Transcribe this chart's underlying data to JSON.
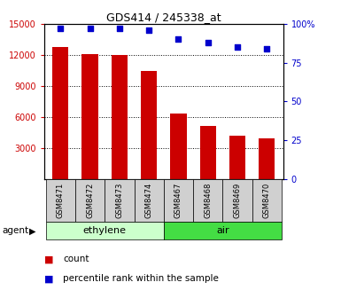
{
  "title": "GDS414 / 245338_at",
  "samples": [
    "GSM8471",
    "GSM8472",
    "GSM8473",
    "GSM8474",
    "GSM8467",
    "GSM8468",
    "GSM8469",
    "GSM8470"
  ],
  "counts": [
    12800,
    12100,
    12000,
    10400,
    6300,
    5100,
    4200,
    3900
  ],
  "percentiles": [
    97,
    97,
    97,
    96,
    90,
    88,
    85,
    84
  ],
  "groups": [
    {
      "label": "ethylene",
      "start": 0,
      "end": 4,
      "color": "#ccffcc"
    },
    {
      "label": "air",
      "start": 4,
      "end": 8,
      "color": "#44dd44"
    }
  ],
  "bar_color": "#CC0000",
  "dot_color": "#0000CC",
  "ylim_left": [
    0,
    15000
  ],
  "ylim_right": [
    0,
    100
  ],
  "yticks_left": [
    3000,
    6000,
    9000,
    12000,
    15000
  ],
  "ytick_labels_left": [
    "3000",
    "6000",
    "9000",
    "12000",
    "15000"
  ],
  "yticks_right": [
    0,
    25,
    50,
    75,
    100
  ],
  "ytick_labels_right": [
    "0",
    "25",
    "50",
    "75",
    "100%"
  ],
  "ylabel_left_color": "#CC0000",
  "ylabel_right_color": "#0000CC",
  "grid_color": "black",
  "sample_box_color": "#d0d0d0",
  "agent_label": "agent",
  "legend_count_label": "count",
  "legend_percentile_label": "percentile rank within the sample"
}
